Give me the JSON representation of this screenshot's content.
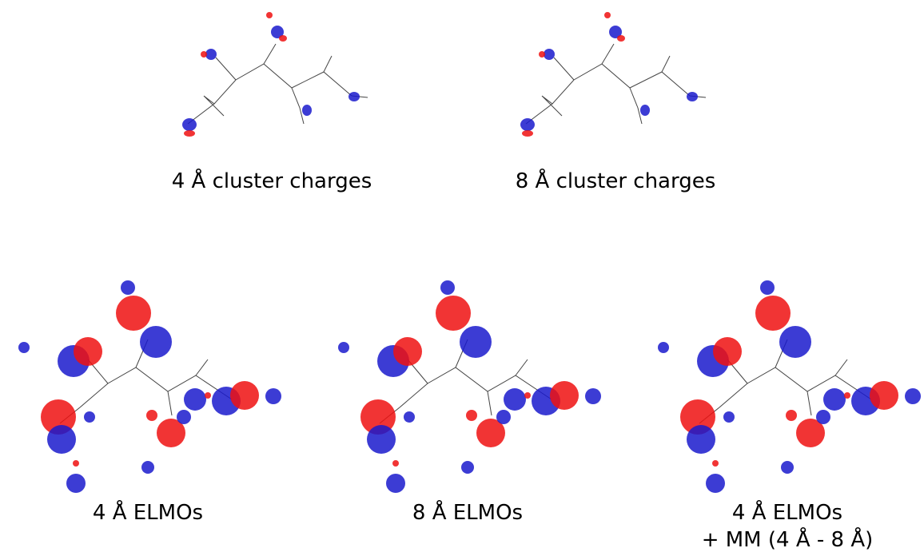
{
  "panels": [
    {
      "label": "4 Å cluster charges"
    },
    {
      "label": "8 Å cluster charges"
    },
    {
      "label": "4 Å ELMOs"
    },
    {
      "label": "8 Å ELMOs"
    },
    {
      "label": "4 Å ELMOs",
      "sublabel": "+ MM (4 Å - 8 Å)"
    }
  ]
}
